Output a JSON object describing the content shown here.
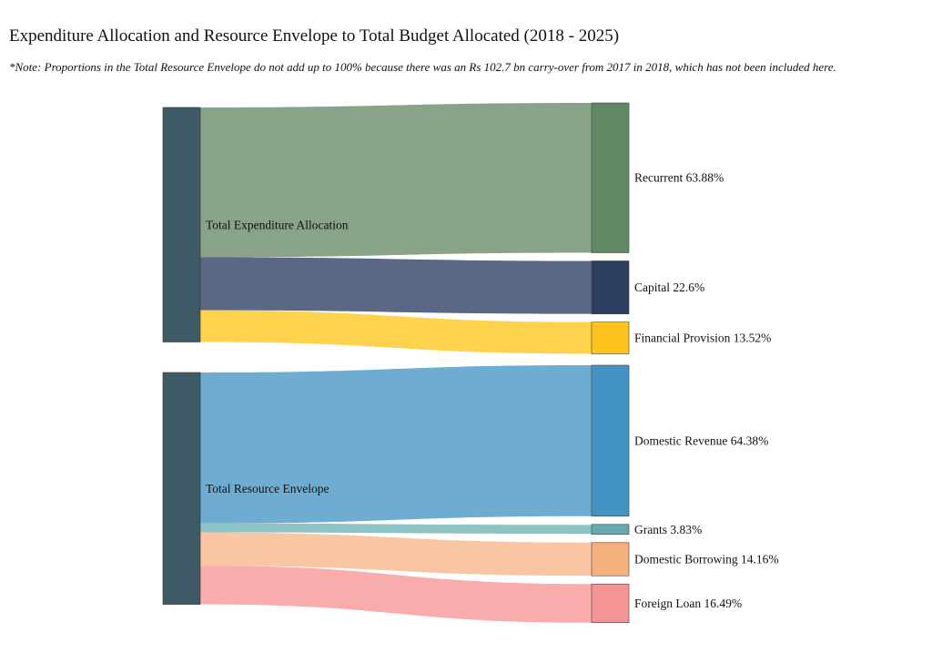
{
  "title": "Expenditure Allocation and Resource Envelope to Total Budget Allocated (2018 - 2025)",
  "note": "*Note: Proportions in the Total Resource Envelope do not add up to 100% because there was an Rs 102.7 bn carry-over from 2017 in 2018, which has not been included here.",
  "chart_data": {
    "type": "sankey",
    "unit": "%",
    "groups": [
      {
        "source": "Total Expenditure Allocation",
        "source_color": "#3e5a66",
        "targets": [
          {
            "name": "Recurrent",
            "value": 63.88,
            "node_color": "#628963",
            "link_color": "#88a388"
          },
          {
            "name": "Capital",
            "value": 22.6,
            "node_color": "#2c3e60",
            "link_color": "#5b6885"
          },
          {
            "name": "Financial Provision",
            "value": 13.52,
            "node_color": "#fcc41c",
            "link_color": "#fdd24c"
          }
        ]
      },
      {
        "source": "Total Resource Envelope",
        "source_color": "#3e5a66",
        "targets": [
          {
            "name": "Domestic Revenue",
            "value": 64.38,
            "node_color": "#4393c3",
            "link_color": "#6eacd1"
          },
          {
            "name": "Grants",
            "value": 3.83,
            "node_color": "#67a9ac",
            "link_color": "#8dc3c3"
          },
          {
            "name": "Domestic Borrowing",
            "value": 14.16,
            "node_color": "#f6b07e",
            "link_color": "#f9c6a4"
          },
          {
            "name": "Foreign Loan",
            "value": 16.49,
            "node_color": "#f49493",
            "link_color": "#f8acac"
          }
        ]
      }
    ]
  }
}
